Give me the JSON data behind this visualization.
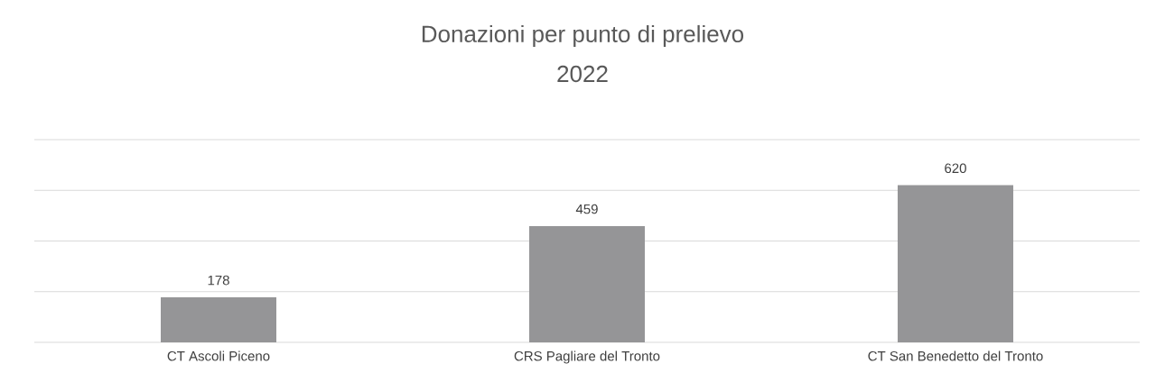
{
  "chart_data": {
    "type": "bar",
    "title": "Donazioni per punto di prelievo",
    "subtitle": "2022",
    "categories": [
      "CT Ascoli Piceno",
      "CRS Pagliare del Tronto",
      "CT San Benedetto del Tronto"
    ],
    "values": [
      178,
      459,
      620
    ],
    "color": "#959597",
    "data_labels": true,
    "ylim": [
      0,
      800
    ],
    "yticks": [
      {
        "value": 0,
        "label": null
      },
      {
        "value": 200,
        "label": null
      },
      {
        "value": 400,
        "label": null
      },
      {
        "value": 600,
        "label": null
      },
      {
        "value": 800,
        "label": null
      }
    ],
    "grid": "y",
    "tick_labels": "x"
  }
}
